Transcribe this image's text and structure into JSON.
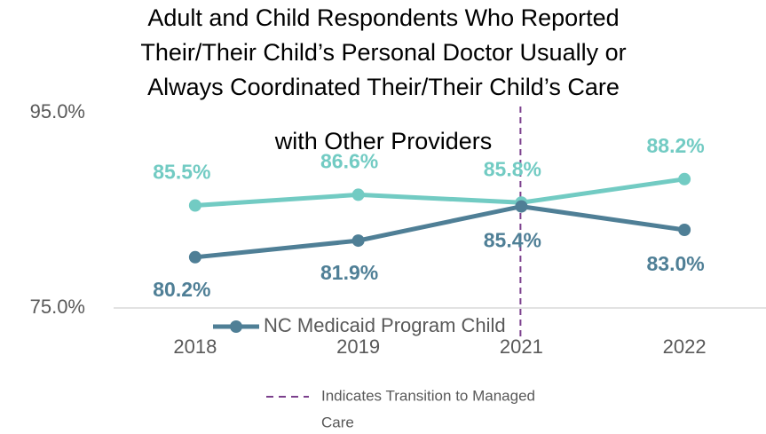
{
  "chart_data": {
    "type": "line",
    "title": [
      "Adult and Child Respondents Who Reported",
      "Their/Their Child’s Personal Doctor Usually or",
      "Always Coordinated Their/Their Child’s Care",
      "with Other Providers"
    ],
    "categories": [
      "2018",
      "2019",
      "2021",
      "2022"
    ],
    "series": [
      {
        "color": "#72cbc3",
        "values": [
          85.5,
          86.6,
          85.8,
          88.2
        ],
        "value_labels": [
          "85.5%",
          "86.6%",
          "85.8%",
          "88.2%"
        ]
      },
      {
        "name": "NC Medicaid Program Child",
        "color": "#4f7f96",
        "values": [
          80.2,
          81.9,
          85.4,
          83.0
        ],
        "value_labels": [
          "80.2%",
          "81.9%",
          "85.4%",
          "83.0%"
        ]
      }
    ],
    "ylim": [
      75,
      95
    ],
    "yticks": [
      {
        "value": 75,
        "label": "75.0%"
      },
      {
        "value": 95,
        "label": "95.0%"
      }
    ],
    "annotation": {
      "category": "2021",
      "color": "#7b3f8c",
      "text": [
        "Indicates Transition to Managed",
        "Care"
      ]
    }
  }
}
